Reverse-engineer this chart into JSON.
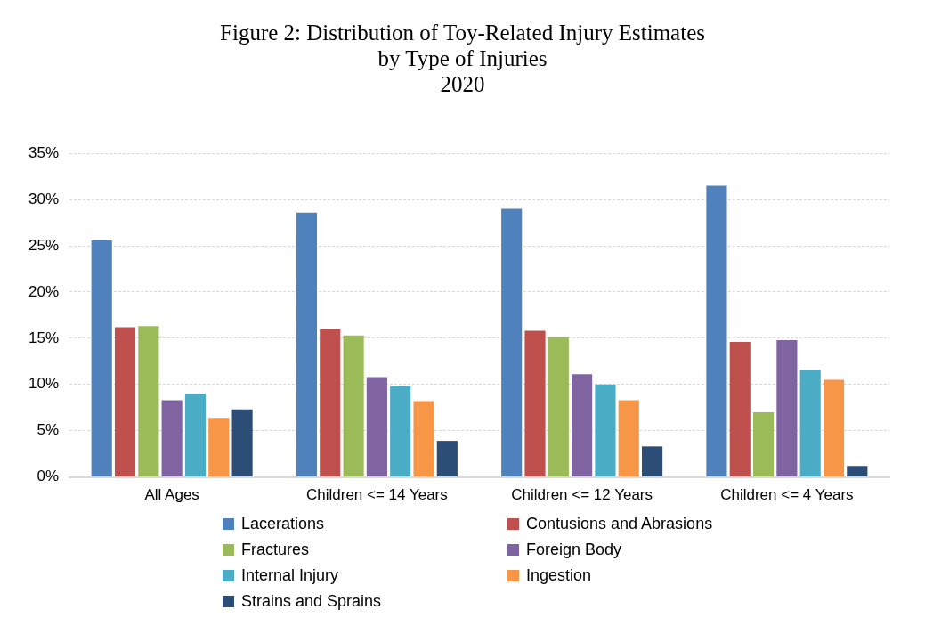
{
  "chart_data": {
    "type": "bar",
    "title": "Figure 2: Distribution of Toy-Related Injury Estimates\nby Type of Injuries\n2020",
    "categories": [
      "All Ages",
      "Children <= 14 Years",
      "Children <= 12 Years",
      "Children <= 4 Years"
    ],
    "series": [
      {
        "name": "Lacerations",
        "color": "#4f81bd",
        "values": [
          25.6,
          28.6,
          29.0,
          31.5
        ]
      },
      {
        "name": "Contusions and Abrasions",
        "color": "#c0504d",
        "values": [
          16.2,
          16.0,
          15.8,
          14.6
        ]
      },
      {
        "name": "Fractures",
        "color": "#9bbb59",
        "values": [
          16.3,
          15.3,
          15.1,
          7.0
        ]
      },
      {
        "name": "Foreign Body",
        "color": "#8064a2",
        "values": [
          8.3,
          10.8,
          11.1,
          14.8
        ]
      },
      {
        "name": "Internal Injury",
        "color": "#4bacc6",
        "values": [
          9.0,
          9.8,
          10.0,
          11.6
        ]
      },
      {
        "name": "Ingestion",
        "color": "#f79646",
        "values": [
          6.4,
          8.2,
          8.3,
          10.5
        ]
      },
      {
        "name": "Strains and Sprains",
        "color": "#2c4d75",
        "values": [
          7.3,
          3.9,
          3.3,
          1.2
        ]
      }
    ],
    "ylim": [
      0,
      35
    ],
    "yticks": [
      {
        "value": 0,
        "label": "0%"
      },
      {
        "value": 5,
        "label": "5%"
      },
      {
        "value": 10,
        "label": "10%"
      },
      {
        "value": 15,
        "label": "15%"
      },
      {
        "value": 20,
        "label": "20%"
      },
      {
        "value": 25,
        "label": "25%"
      },
      {
        "value": 30,
        "label": "30%"
      },
      {
        "value": 35,
        "label": "35%"
      }
    ],
    "grid": "y",
    "legend": "bottom"
  }
}
